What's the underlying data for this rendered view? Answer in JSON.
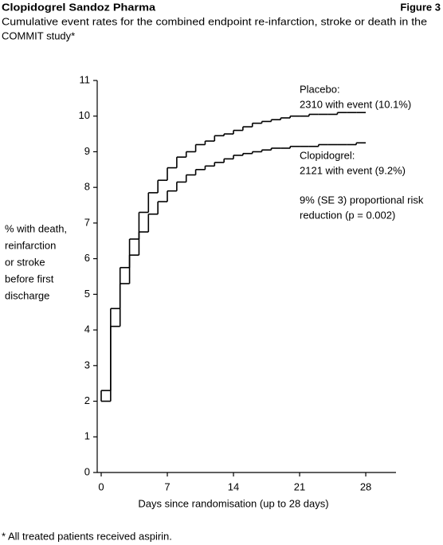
{
  "header": {
    "company": "Clopidogrel Sandoz Pharma",
    "figure": "Figure 3",
    "subtitle_lines": [
      "Cumulative event rates for the combined endpoint re-infarction, stroke or death in the",
      "COMMIT study*"
    ]
  },
  "chart_data": {
    "type": "step",
    "xlabel": "Days since randomisation (up to 28 days)",
    "ylabel_lines": [
      "% with death,",
      "reinfarction",
      "or stroke",
      "before first",
      "discharge"
    ],
    "x": [
      0,
      1,
      2,
      3,
      4,
      5,
      6,
      7,
      8,
      9,
      10,
      11,
      12,
      13,
      14,
      15,
      16,
      17,
      18,
      19,
      20,
      21,
      22,
      23,
      24,
      25,
      26,
      27
    ],
    "series": [
      {
        "name": "Placebo",
        "color": "#000000",
        "values": [
          2.3,
          4.6,
          5.75,
          6.55,
          7.3,
          7.85,
          8.2,
          8.55,
          8.85,
          9.0,
          9.2,
          9.3,
          9.45,
          9.5,
          9.6,
          9.7,
          9.8,
          9.85,
          9.9,
          9.95,
          10.0,
          10.0,
          10.05,
          10.05,
          10.05,
          10.1,
          10.1,
          10.1
        ]
      },
      {
        "name": "Clopidogrel",
        "color": "#000000",
        "values": [
          2.0,
          4.1,
          5.3,
          6.1,
          6.75,
          7.25,
          7.6,
          7.9,
          8.15,
          8.35,
          8.5,
          8.6,
          8.7,
          8.8,
          8.9,
          8.95,
          9.0,
          9.05,
          9.1,
          9.1,
          9.15,
          9.15,
          9.15,
          9.2,
          9.2,
          9.2,
          9.2,
          9.25
        ]
      }
    ],
    "annotations": [
      "Placebo:",
      "2310 with event (10.1%)",
      "Clopidogrel:",
      "2121 with event (9.2%)",
      "9% (SE 3) proportional risk",
      "reduction (p = 0.002)"
    ],
    "xlim": [
      0,
      31.2
    ],
    "ylim": [
      0,
      11
    ],
    "xticks": [
      0,
      7,
      14,
      21,
      28
    ],
    "yticks": [
      0,
      1,
      2,
      3,
      4,
      5,
      6,
      7,
      8,
      9,
      10,
      11
    ]
  },
  "footnote": "* All treated patients received aspirin."
}
